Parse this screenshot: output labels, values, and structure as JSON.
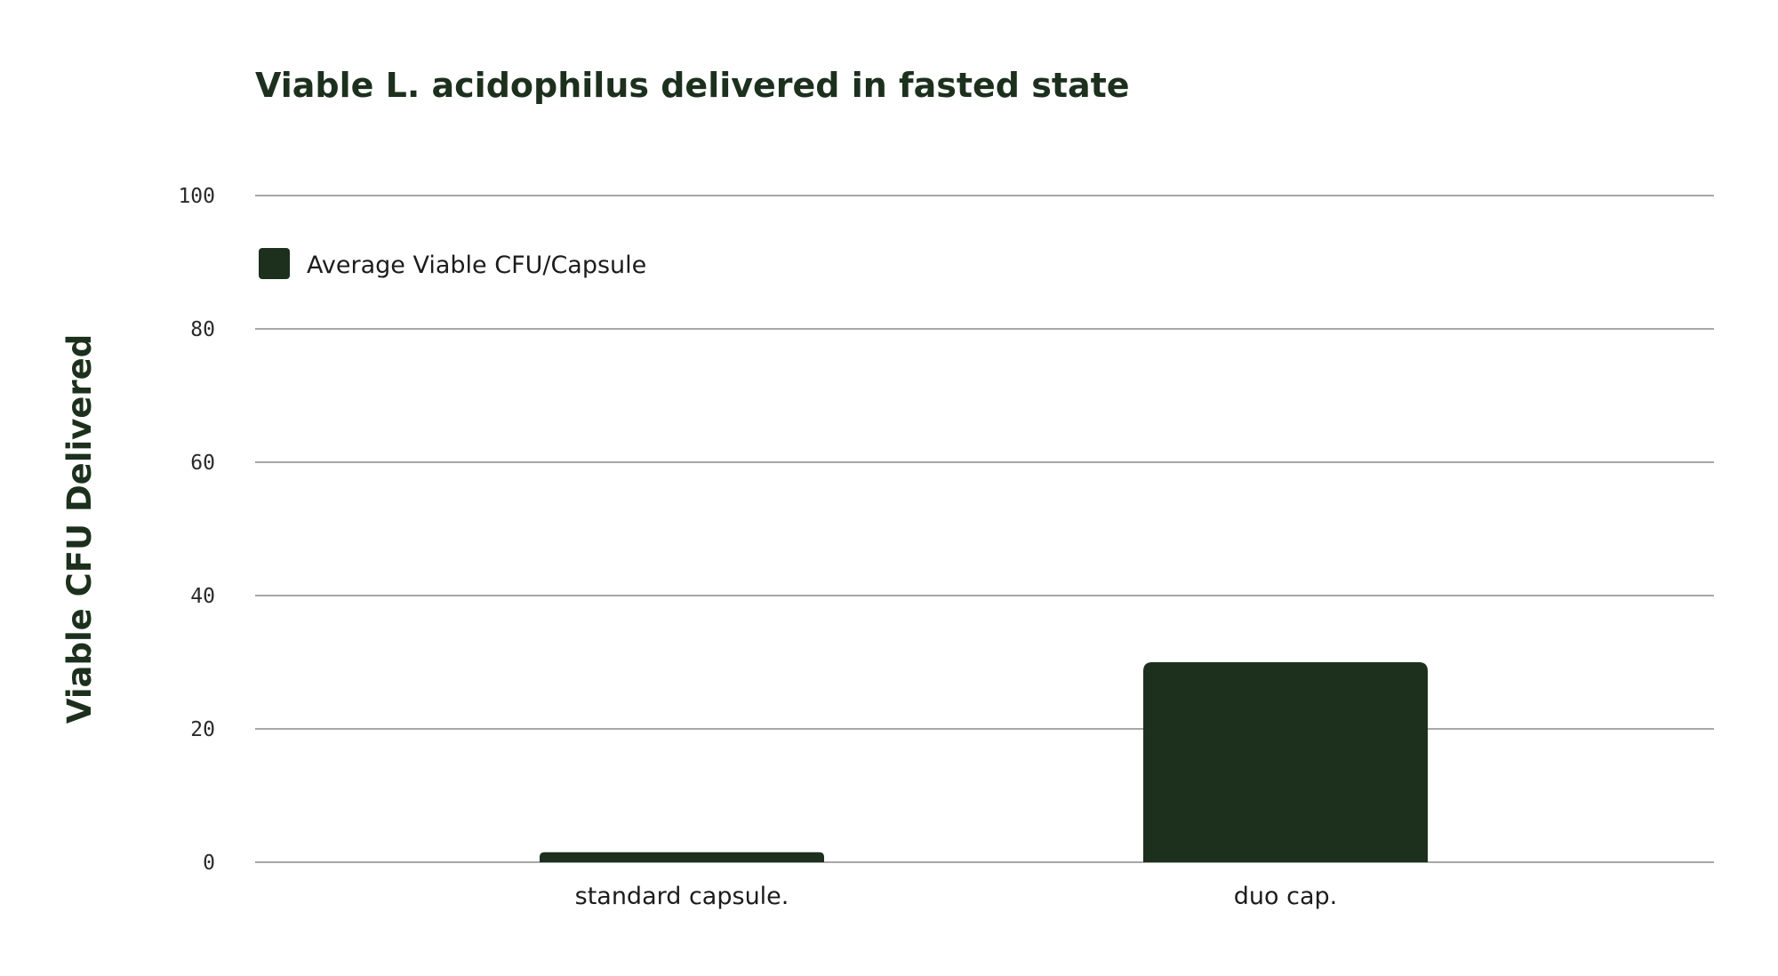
{
  "chart_data": {
    "type": "bar",
    "title": "Viable L. acidophilus delivered in fasted state",
    "xlabel": "",
    "ylabel": "Viable CFU Delivered",
    "categories": [
      "standard capsule.",
      "duo cap."
    ],
    "series": [
      {
        "name": "Average Viable CFU/Capsule",
        "values": [
          1.5,
          30
        ],
        "color": "#1c301d"
      }
    ],
    "ylim": [
      0,
      100
    ],
    "yticks": [
      0,
      20,
      40,
      60,
      80,
      100
    ],
    "grid": true,
    "legend_position": "top-left"
  }
}
